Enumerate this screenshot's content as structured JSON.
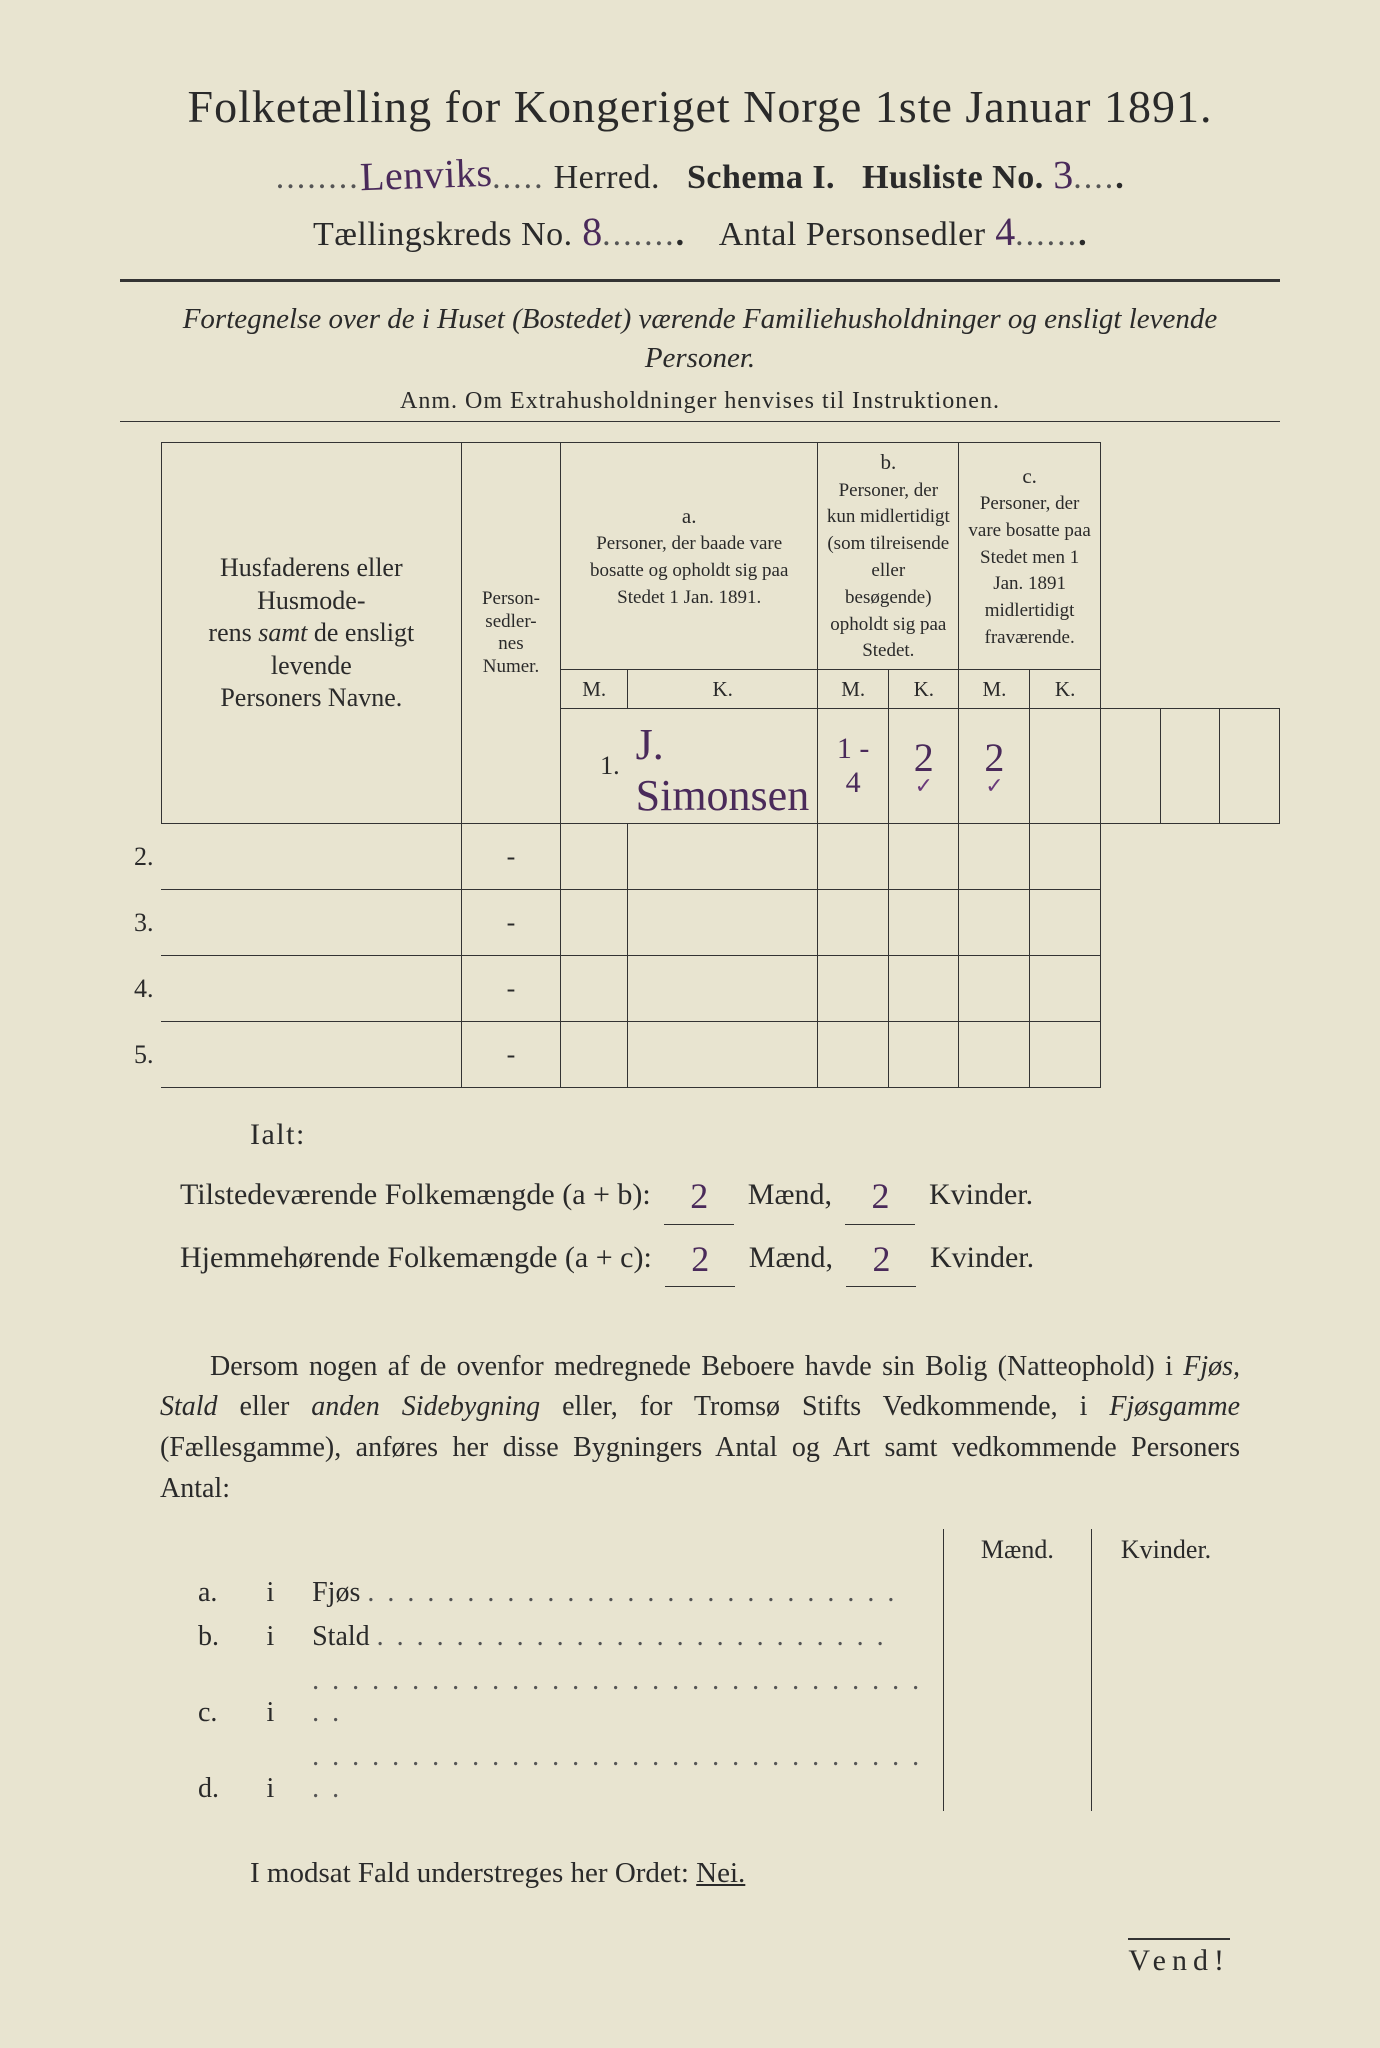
{
  "colors": {
    "paper": "#e8e4d0",
    "ink": "#2a2a2a",
    "handwriting": "#4a2a5a",
    "rule": "#333333"
  },
  "typography": {
    "base_family": "Times New Roman",
    "handwriting_family": "Brush Script MT",
    "title_fontsize_pt": 34,
    "body_fontsize_pt": 21
  },
  "header": {
    "title": "Folketælling for Kongeriget Norge 1ste Januar 1891.",
    "herred_value": "Lenviks",
    "herred_label": "Herred.",
    "schema_label": "Schema I.",
    "husliste_label": "Husliste No.",
    "husliste_value": "3",
    "kreds_label": "Tællingskreds No.",
    "kreds_value": "8",
    "antal_label": "Antal Personsedler",
    "antal_value": "4"
  },
  "fortegnelse": {
    "line": "Fortegnelse over de i Huset (Bostedet) værende Familiehusholdninger og ensligt levende Personer.",
    "anm": "Anm.  Om Extrahusholdninger henvises til Instruktionen."
  },
  "table": {
    "col_names": "Husfaderens eller Husmoderens samt de ensligt levende Personers Navne.",
    "col_numer": "Person-\nsedler-\nnes\nNumer.",
    "col_a_label": "a.",
    "col_a": "Personer, der baade vare bosatte og opholdt sig paa Stedet 1 Jan. 1891.",
    "col_b_label": "b.",
    "col_b": "Personer, der kun midlertidigt (som tilreisende eller besøgende) opholdt sig paa Stedet.",
    "col_c_label": "c.",
    "col_c": "Personer, der vare bosatte paa Stedet men 1 Jan. 1891 midlertidigt fraværende.",
    "mk_m": "M.",
    "mk_k": "K.",
    "rows": [
      {
        "n": "1.",
        "name": "J. Simonsen",
        "numer": "1 - 4",
        "a_m": "2",
        "a_k": "2",
        "tick": "✓"
      },
      {
        "n": "2.",
        "name": "",
        "numer": "-",
        "a_m": "",
        "a_k": ""
      },
      {
        "n": "3.",
        "name": "",
        "numer": "-",
        "a_m": "",
        "a_k": ""
      },
      {
        "n": "4.",
        "name": "",
        "numer": "-",
        "a_m": "",
        "a_k": ""
      },
      {
        "n": "5.",
        "name": "",
        "numer": "-",
        "a_m": "",
        "a_k": ""
      }
    ]
  },
  "totals": {
    "ialt": "Ialt:",
    "line1_label_a": "Tilstedeværende Folkemængde (a + b):",
    "line2_label_a": "Hjemmehørende Folkemængde (a + c):",
    "maend": "Mænd,",
    "kvinder": "Kvinder.",
    "ab_m": "2",
    "ab_k": "2",
    "ac_m": "2",
    "ac_k": "2"
  },
  "dersom": {
    "text1": "Dersom nogen af de ovenfor medregnede Beboere havde sin Bolig (Natteophold) i ",
    "it1": "Fjøs, Stald",
    "text2": " eller ",
    "it2": "anden Sidebygning",
    "text3": " eller, for Tromsø Stifts Vedkommende, i ",
    "it3": "Fjøsgamme",
    "text4": " (Fællesgamme), anføres her disse Bygningers Antal og Art samt vedkommende Personers Antal:"
  },
  "side_table": {
    "head_m": "Mænd.",
    "head_k": "Kvinder.",
    "rows": [
      {
        "l": "a.",
        "i": "i",
        "t": "Fjøs"
      },
      {
        "l": "b.",
        "i": "i",
        "t": "Stald"
      },
      {
        "l": "c.",
        "i": "i",
        "t": ""
      },
      {
        "l": "d.",
        "i": "i",
        "t": ""
      }
    ]
  },
  "modsat": {
    "pre": "I modsat Fald understreges her Ordet: ",
    "nei": "Nei."
  },
  "vend": "Vend!"
}
